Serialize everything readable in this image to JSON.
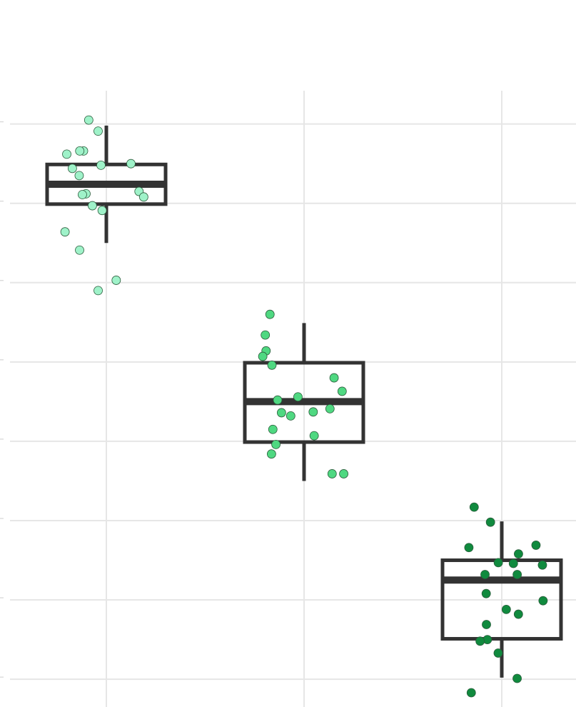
{
  "chart_data": {
    "type": "box",
    "categories": [
      null,
      null,
      null
    ],
    "ylim": [
      -0.35,
      7.42
    ],
    "yticks": [
      0,
      1,
      2,
      3,
      4,
      5,
      6,
      7
    ],
    "grid": true,
    "boxes": [
      {
        "whisker_low": 5.5,
        "q1": 5.99,
        "median": 6.24,
        "q3": 6.49,
        "whisker_high": 6.98,
        "color": "#9ff2c9",
        "points": [
          7.05,
          6.91,
          6.66,
          6.62,
          6.66,
          6.5,
          6.44,
          6.48,
          6.35,
          6.15,
          6.12,
          6.08,
          6.11,
          5.97,
          5.91,
          5.64,
          5.41,
          5.03,
          4.9
        ]
      },
      {
        "whisker_low": 2.5,
        "q1": 2.99,
        "median": 3.5,
        "q3": 3.99,
        "whisker_high": 4.49,
        "color": "#4fd881",
        "points": [
          4.6,
          4.34,
          4.14,
          4.07,
          3.96,
          3.8,
          3.63,
          3.56,
          3.52,
          3.41,
          3.36,
          3.37,
          3.32,
          3.15,
          3.07,
          2.96,
          2.84,
          2.59,
          2.59
        ]
      },
      {
        "whisker_low": 0.02,
        "q1": 0.51,
        "median": 1.25,
        "q3": 1.5,
        "whisker_high": 1.99,
        "color": "#108a3e",
        "points": [
          2.17,
          1.98,
          1.69,
          1.66,
          1.58,
          1.47,
          1.46,
          1.44,
          1.32,
          1.32,
          1.08,
          0.99,
          0.88,
          0.82,
          0.69,
          0.5,
          0.48,
          0.33,
          0.01,
          -0.17
        ]
      }
    ]
  }
}
